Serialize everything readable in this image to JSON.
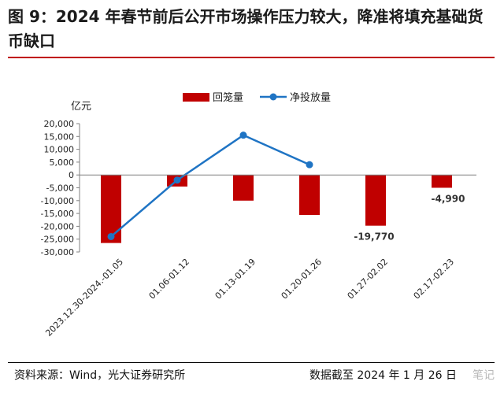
{
  "header": {
    "title": "图 9：2024 年春节前后公开市场操作压力较大，降准将填充基础货币缺口"
  },
  "footer": {
    "source": "资料来源：Wind，光大证券研究所",
    "date_note": "数据截至 2024 年 1 月 26 日",
    "watermark": "笔记"
  },
  "colors": {
    "bar": "#c00000",
    "line": "#1f74c4",
    "accent_rule": "#c00000"
  },
  "chart_data": {
    "type": "bar",
    "ylabel": "亿元",
    "ylim": [
      -30000,
      20000
    ],
    "yticks": [
      20000,
      15000,
      10000,
      5000,
      0,
      -5000,
      -10000,
      -15000,
      -20000,
      -25000,
      -30000
    ],
    "ytick_labels": [
      "20,000",
      "15,000",
      "10,000",
      "5,000",
      "0",
      "-5,000",
      "-10,000",
      "-15,000",
      "-20,000",
      "-25,000",
      "-30,000"
    ],
    "categories": [
      "2023.12.30-2024.-01.05",
      "01.06-01.12",
      "01.13-01.19",
      "01.20-01.26",
      "01.27-02.02",
      "02.17-02.23"
    ],
    "legend_position": "top",
    "series": [
      {
        "name": "回笼量",
        "kind": "bar",
        "values": [
          -26500,
          -4500,
          -10000,
          -15600,
          -19770,
          -4990
        ],
        "data_labels": [
          null,
          null,
          null,
          null,
          "-19,770",
          "-4,990"
        ]
      },
      {
        "name": "净投放量",
        "kind": "line",
        "values": [
          -24000,
          -2000,
          15500,
          4000,
          null,
          null
        ]
      }
    ]
  }
}
